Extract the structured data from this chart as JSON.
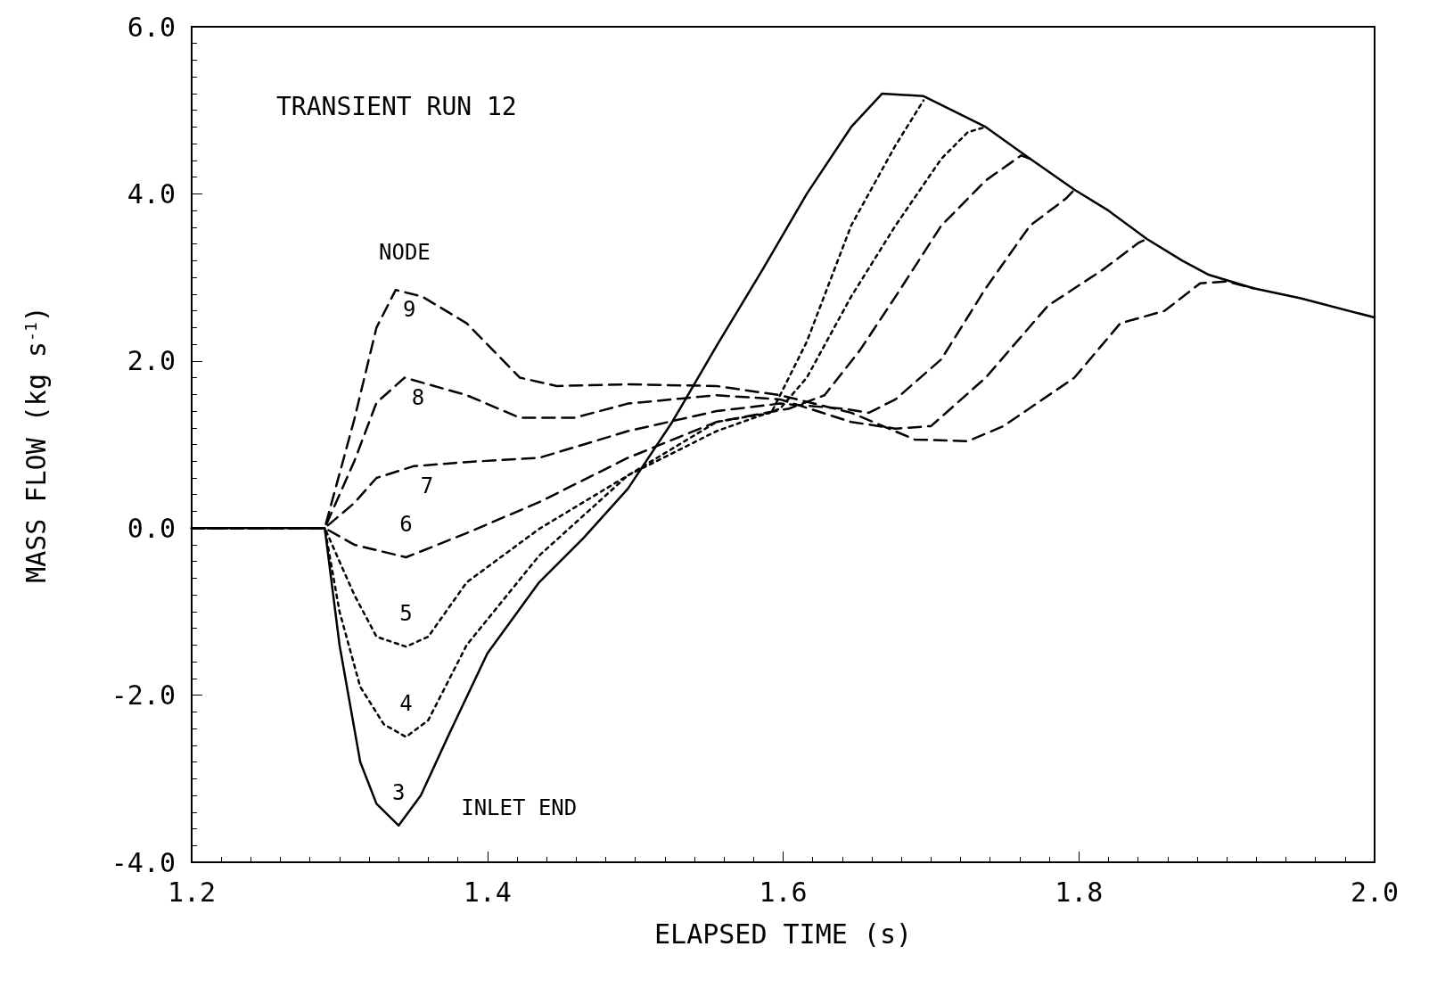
{
  "chart_data": {
    "type": "line",
    "xlabel": "ELAPSED TIME (s)",
    "ylabel": "MASS FLOW (kg s$^{-1}$)",
    "annotations": [
      "TRANSIENT RUN 12",
      "NODE",
      "INLET END"
    ],
    "xlim": [
      1.2,
      2.0
    ],
    "xticks": [
      1.2,
      1.4,
      1.6,
      1.8,
      {
        "value": 2.0,
        "label": "2.0"
      }
    ],
    "ylim": [
      -4,
      6
    ],
    "yticks": [
      {
        "value": -4,
        "label": "-4.0"
      },
      {
        "value": -2,
        "label": "-2.0"
      },
      {
        "value": 0,
        "label": "0.0"
      },
      {
        "value": 2,
        "label": "2.0"
      },
      {
        "value": 4,
        "label": "4.0"
      },
      {
        "value": 6,
        "label": "6.0"
      }
    ],
    "grid": false,
    "marker": "none",
    "series": [
      {
        "name": "3",
        "color": "#000000",
        "line_style": "solid",
        "x": [
          1.2,
          1.29,
          1.3,
          1.314,
          1.325,
          1.34,
          1.355,
          1.374,
          1.4,
          1.435,
          1.465,
          1.495,
          1.525,
          1.555,
          1.586,
          1.616,
          1.646,
          1.667,
          1.695,
          1.72,
          1.737,
          1.767,
          1.797,
          1.82,
          1.846,
          1.87,
          1.888,
          1.918,
          1.95,
          2.0
        ],
        "values": [
          0,
          0,
          -1.4,
          -2.8,
          -3.3,
          -3.56,
          -3.2,
          -2.47,
          -1.5,
          -0.65,
          -0.12,
          0.47,
          1.27,
          2.18,
          3.09,
          4.0,
          4.8,
          5.2,
          5.17,
          4.95,
          4.8,
          4.42,
          4.05,
          3.8,
          3.46,
          3.2,
          3.03,
          2.87,
          2.75,
          2.52
        ]
      },
      {
        "name": "4",
        "color": "#000000",
        "line_style": "dotted",
        "x": [
          1.2,
          1.29,
          1.3,
          1.314,
          1.33,
          1.345,
          1.36,
          1.386,
          1.435,
          1.495,
          1.555,
          1.592,
          1.616,
          1.646,
          1.676,
          1.695
        ],
        "values": [
          0,
          0,
          -1.0,
          -1.9,
          -2.35,
          -2.5,
          -2.3,
          -1.4,
          -0.33,
          0.63,
          1.27,
          1.38,
          2.23,
          3.62,
          4.58,
          5.12
        ]
      },
      {
        "name": "5",
        "color": "#000000",
        "line_style": "dotted",
        "x": [
          1.2,
          1.29,
          1.31,
          1.325,
          1.345,
          1.36,
          1.386,
          1.435,
          1.495,
          1.555,
          1.598,
          1.616,
          1.646,
          1.676,
          1.707,
          1.725,
          1.737
        ],
        "values": [
          0,
          0,
          -0.8,
          -1.3,
          -1.42,
          -1.3,
          -0.65,
          -0.01,
          0.63,
          1.16,
          1.43,
          1.8,
          2.77,
          3.62,
          4.42,
          4.74,
          4.8
        ]
      },
      {
        "name": "6",
        "color": "#000000",
        "line_style": "dashed",
        "x": [
          1.2,
          1.29,
          1.31,
          1.345,
          1.386,
          1.435,
          1.495,
          1.555,
          1.604,
          1.628,
          1.652,
          1.676,
          1.707,
          1.737,
          1.761,
          1.767
        ],
        "values": [
          0,
          0,
          -0.2,
          -0.35,
          -0.06,
          0.31,
          0.84,
          1.27,
          1.43,
          1.59,
          2.13,
          2.77,
          3.62,
          4.16,
          4.46,
          4.42
        ]
      },
      {
        "name": "7",
        "color": "#000000",
        "line_style": "dashed",
        "x": [
          1.2,
          1.29,
          1.31,
          1.325,
          1.35,
          1.386,
          1.435,
          1.495,
          1.555,
          1.598,
          1.64,
          1.658,
          1.676,
          1.707,
          1.737,
          1.767,
          1.791,
          1.797
        ],
        "values": [
          0,
          0,
          0.3,
          0.6,
          0.74,
          0.79,
          0.84,
          1.16,
          1.4,
          1.49,
          1.43,
          1.38,
          1.54,
          2.02,
          2.87,
          3.62,
          3.94,
          4.05
        ]
      },
      {
        "name": "8",
        "color": "#000000",
        "line_style": "dashed",
        "x": [
          1.2,
          1.29,
          1.31,
          1.325,
          1.344,
          1.386,
          1.422,
          1.459,
          1.495,
          1.555,
          1.598,
          1.646,
          1.676,
          1.7,
          1.737,
          1.779,
          1.816,
          1.84,
          1.846
        ],
        "values": [
          0,
          0,
          0.8,
          1.5,
          1.8,
          1.59,
          1.32,
          1.32,
          1.49,
          1.59,
          1.54,
          1.27,
          1.19,
          1.22,
          1.8,
          2.66,
          3.09,
          3.41,
          3.46
        ]
      },
      {
        "name": "9",
        "color": "#000000",
        "line_style": "dashed",
        "x": [
          1.2,
          1.29,
          1.31,
          1.325,
          1.338,
          1.356,
          1.386,
          1.422,
          1.447,
          1.495,
          1.555,
          1.598,
          1.646,
          1.689,
          1.725,
          1.749,
          1.797,
          1.828,
          1.858,
          1.882,
          1.9,
          1.918
        ],
        "values": [
          0,
          0,
          1.3,
          2.4,
          2.85,
          2.77,
          2.45,
          1.8,
          1.7,
          1.72,
          1.7,
          1.59,
          1.38,
          1.06,
          1.04,
          1.22,
          1.8,
          2.45,
          2.6,
          2.93,
          2.95,
          2.87
        ]
      }
    ]
  }
}
